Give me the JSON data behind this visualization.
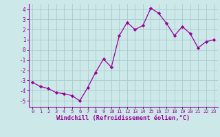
{
  "x": [
    0,
    1,
    2,
    3,
    4,
    5,
    6,
    7,
    8,
    9,
    10,
    11,
    12,
    13,
    14,
    15,
    16,
    17,
    18,
    19,
    20,
    21,
    22,
    23
  ],
  "y": [
    -3.2,
    -3.6,
    -3.8,
    -4.2,
    -4.3,
    -4.5,
    -5.0,
    -3.7,
    -2.2,
    -0.9,
    -1.7,
    1.4,
    2.7,
    2.0,
    2.4,
    4.1,
    3.6,
    2.6,
    1.4,
    2.3,
    1.6,
    0.2,
    0.8,
    1.0
  ],
  "xlabel": "Windchill (Refroidissement éolien,°C)",
  "yticks": [
    -5,
    -4,
    -3,
    -2,
    -1,
    0,
    1,
    2,
    3,
    4
  ],
  "xticks": [
    0,
    1,
    2,
    3,
    4,
    5,
    6,
    7,
    8,
    9,
    10,
    11,
    12,
    13,
    14,
    15,
    16,
    17,
    18,
    19,
    20,
    21,
    22,
    23
  ],
  "line_color": "#990099",
  "marker_color": "#990099",
  "bg_color": "#cce8e8",
  "grid_color": "#aacccc",
  "xlabel_color": "#990099",
  "xlim": [
    -0.5,
    23.5
  ],
  "ylim": [
    -5.6,
    4.5
  ],
  "spine_color": "#9900aa"
}
